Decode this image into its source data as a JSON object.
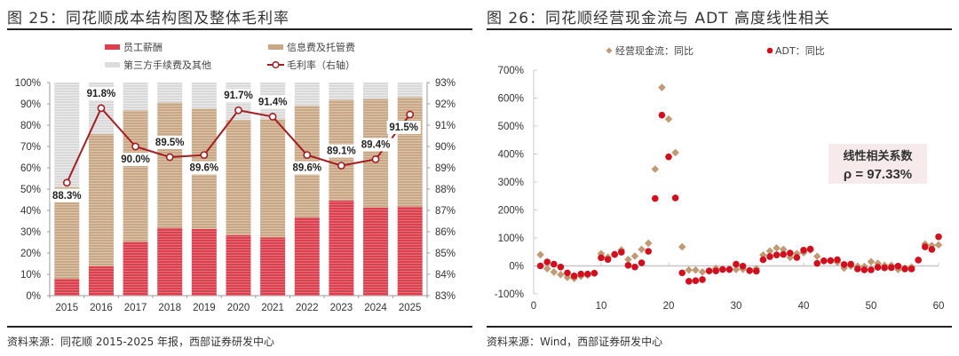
{
  "left": {
    "title": "图 25：同花顺成本结构图及整体毛利率",
    "source": "资料来源：同花顺 2015-2025 年报，西部证券研发中心"
  },
  "right": {
    "title": "图 26：同花顺经营现金流与 ADT 高度线性相关",
    "source": "资料来源：Wind，西部证券研发中心",
    "annotation_title": "线性相关系数",
    "annotation_value": "ρ = 97.33%"
  },
  "chart_data": [
    {
      "type": "bar",
      "stacked": true,
      "title": "同花顺成本结构图及整体毛利率",
      "categories": [
        "2015",
        "2016",
        "2017",
        "2018",
        "2019",
        "2020",
        "2021",
        "2022",
        "2023",
        "2024",
        "2025"
      ],
      "series": [
        {
          "name": "员工薪酬",
          "color": "#d9414f",
          "values": [
            7.9,
            13.8,
            25.2,
            31.8,
            31.3,
            28.4,
            27.4,
            36.7,
            44.7,
            41.4,
            41.8
          ]
        },
        {
          "name": "信息费及托管费",
          "color": "#c9a887",
          "values": [
            42.9,
            62.0,
            61.7,
            58.8,
            56.5,
            54.0,
            55.4,
            52.4,
            47.2,
            51.0,
            51.4
          ]
        },
        {
          "name": "第三方手续费及其他",
          "color": "#dcdcdc",
          "values": [
            49.2,
            24.2,
            13.1,
            9.4,
            12.2,
            17.6,
            17.2,
            10.9,
            8.1,
            7.6,
            6.8
          ]
        }
      ],
      "line_series": {
        "name": "毛利率（右轴）",
        "color": "#a31f24",
        "axis": "right",
        "values": [
          88.3,
          91.8,
          90.0,
          89.5,
          89.6,
          91.7,
          91.4,
          89.6,
          89.1,
          89.4,
          91.5
        ],
        "labels": [
          "88.3%",
          "91.8%",
          "90.0%",
          "89.5%",
          "89.6%",
          "91.7%",
          "91.4%",
          "89.6%",
          "89.1%",
          "89.4%",
          "91.5%"
        ]
      },
      "ylim": [
        0,
        100
      ],
      "yticks": [
        "0%",
        "10%",
        "20%",
        "30%",
        "40%",
        "50%",
        "60%",
        "70%",
        "80%",
        "90%",
        "100%"
      ],
      "y2lim": [
        83,
        93
      ],
      "y2ticks": [
        "83%",
        "84%",
        "85%",
        "86%",
        "87%",
        "88%",
        "89%",
        "90%",
        "91%",
        "92%",
        "93%"
      ],
      "legend": "top",
      "grid": false
    },
    {
      "type": "scatter",
      "title": "同花顺经营现金流与 ADT 高度线性相关",
      "xlim": [
        0,
        60
      ],
      "xticks": [
        "0",
        "10",
        "20",
        "30",
        "40",
        "50",
        "60"
      ],
      "ylim": [
        -100,
        700
      ],
      "yticks": [
        "-100%",
        "0%",
        "100%",
        "200%",
        "300%",
        "400%",
        "500%",
        "600%",
        "700%"
      ],
      "legend": "top",
      "grid": false,
      "series": [
        {
          "name": "经营现金流：同比",
          "marker": "diamond",
          "color": "#c09a74",
          "x": [
            1,
            2,
            3,
            4,
            5,
            6,
            7,
            8,
            9,
            10,
            11,
            12,
            13,
            14,
            15,
            16,
            17,
            18,
            19,
            20,
            21,
            22,
            23,
            24,
            25,
            26,
            27,
            28,
            29,
            30,
            31,
            32,
            33,
            34,
            35,
            36,
            37,
            38,
            39,
            40,
            41,
            42,
            43,
            44,
            45,
            46,
            47,
            48,
            49,
            50,
            51,
            52,
            53,
            54,
            55,
            56,
            57,
            58,
            59,
            60
          ],
          "y": [
            40,
            -10,
            -22,
            -31,
            -41,
            -45,
            -37,
            -33,
            -26,
            44,
            31,
            41,
            57,
            23,
            35,
            59,
            81,
            346,
            638,
            525,
            405,
            68,
            -15,
            -15,
            -22,
            -18,
            -9,
            -12,
            -12,
            -13,
            -12,
            -17,
            -10,
            39,
            53,
            64,
            59,
            30,
            44,
            47,
            56,
            34,
            18,
            19,
            13,
            -8,
            -1,
            -1,
            -2,
            15,
            9,
            2,
            2,
            -13,
            -8,
            -4,
            21,
            78,
            73,
            75
          ]
        },
        {
          "name": "ADT：同比",
          "marker": "circle",
          "color": "#d0101e",
          "x": [
            1,
            2,
            3,
            4,
            5,
            6,
            7,
            8,
            9,
            10,
            11,
            12,
            13,
            14,
            15,
            16,
            17,
            18,
            19,
            20,
            21,
            22,
            23,
            24,
            25,
            26,
            27,
            28,
            29,
            30,
            31,
            32,
            33,
            34,
            35,
            36,
            37,
            38,
            39,
            40,
            41,
            42,
            43,
            44,
            45,
            46,
            47,
            48,
            49,
            50,
            51,
            52,
            53,
            54,
            55,
            56,
            57,
            58,
            59,
            60
          ],
          "y": [
            0,
            14,
            6,
            -4,
            -25,
            -36,
            -29,
            -29,
            -26,
            29,
            23,
            41,
            49,
            2,
            -4,
            11,
            52,
            241,
            539,
            390,
            243,
            -25,
            -55,
            -53,
            -49,
            -18,
            -18,
            -13,
            -13,
            6,
            -1,
            -17,
            -19,
            22,
            33,
            39,
            41,
            46,
            30,
            56,
            60,
            9,
            18,
            19,
            22,
            5,
            6,
            -11,
            -14,
            -14,
            -5,
            -7,
            -6,
            -1,
            -11,
            -11,
            21,
            68,
            59,
            104
          ]
        }
      ]
    }
  ]
}
